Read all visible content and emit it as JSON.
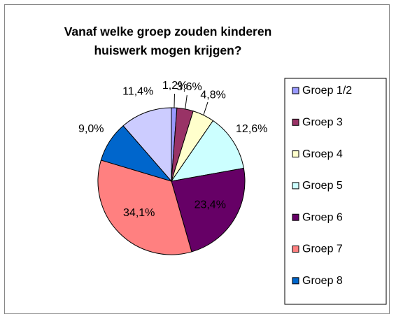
{
  "chart_data": {
    "type": "pie",
    "title": "Vanaf welke groep zouden kinderen huiswerk mogen krijgen?",
    "categories": [
      "Groep 1/2",
      "Groep 3",
      "Groep 4",
      "Groep 5",
      "Groep 6",
      "Groep 7",
      "Groep 8",
      null
    ],
    "values": [
      1.2,
      3.6,
      4.8,
      12.6,
      23.4,
      34.1,
      9.0,
      11.4
    ],
    "value_labels": [
      "1,2%",
      "3,6%",
      "4,8%",
      "12,6%",
      "23,4%",
      "34,1%",
      "9,0%",
      "11,4%"
    ],
    "colors": [
      "#9999ff",
      "#993366",
      "#ffffcc",
      "#ccffff",
      "#660066",
      "#ff8080",
      "#0066cc",
      "#ccccff"
    ],
    "legend": "right"
  }
}
